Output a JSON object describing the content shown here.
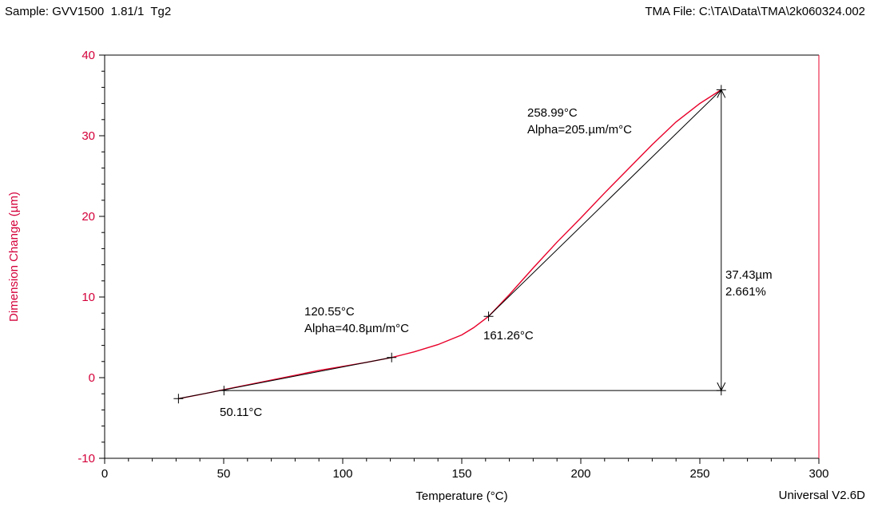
{
  "header": {
    "sample": "Sample: GVV1500  1.81/1  Tg2",
    "file": "TMA File: C:\\TA\\Data\\TMA\\2k060324.002"
  },
  "footer": {
    "version": "Universal V2.6D"
  },
  "colors": {
    "curve": "#e8002a",
    "ylabel": "#d4003a",
    "frame_right": "#e8002a",
    "lines": "#000000"
  },
  "chart_data": {
    "type": "line",
    "xlabel": "Temperature (°C)",
    "ylabel": "Dimension Change (µm)",
    "xlim": [
      0,
      300
    ],
    "ylim": [
      -10,
      40
    ],
    "xticks": [
      0,
      50,
      100,
      150,
      200,
      250,
      300
    ],
    "yticks": [
      -10,
      0,
      10,
      20,
      30,
      40
    ],
    "xtick_labels": [
      "0",
      "50",
      "100",
      "150",
      "200",
      "250",
      "300"
    ],
    "ytick_labels": [
      "-10",
      "0",
      "10",
      "20",
      "30",
      "40"
    ],
    "grid": false,
    "series": [
      {
        "x": [
          31,
          40,
          50,
          60,
          70,
          80,
          90,
          100,
          110,
          120.55,
          130,
          140,
          150,
          155,
          161.26,
          170,
          180,
          190,
          200,
          210,
          220,
          230,
          240,
          250,
          258.99
        ],
        "y": [
          -2.6,
          -2.1,
          -1.5,
          -0.9,
          -0.3,
          0.3,
          0.9,
          1.4,
          1.9,
          2.5,
          3.2,
          4.1,
          5.3,
          6.2,
          7.6,
          10.3,
          13.6,
          16.8,
          19.8,
          22.9,
          25.9,
          28.9,
          31.7,
          34.0,
          35.7
        ]
      }
    ],
    "tangent_lines": [
      {
        "x": [
          31,
          120.55
        ],
        "y": [
          -2.6,
          2.5
        ]
      },
      {
        "x": [
          161.26,
          258.99
        ],
        "y": [
          7.6,
          35.7
        ]
      }
    ],
    "baseline": {
      "x": [
        50.11,
        258.99
      ],
      "y": [
        -1.6,
        -1.6
      ]
    },
    "step_marker": {
      "x": 258.99,
      "y": [
        -1.6,
        35.7
      ]
    },
    "crosshair_points": [
      {
        "x": 31,
        "y": -2.6
      },
      {
        "x": 50.11,
        "y": -1.6
      },
      {
        "x": 120.55,
        "y": 2.5
      },
      {
        "x": 161.26,
        "y": 7.6
      },
      {
        "x": 258.99,
        "y": 35.7
      },
      {
        "x": 258.99,
        "y": -1.6
      }
    ],
    "annotations": {
      "pt1_temp": "50.11°C",
      "pt2_temp": "120.55°C",
      "pt2_alpha": "Alpha=40.8µm/m°C",
      "pt3_temp": "161.26°C",
      "pt4_temp": "258.99°C",
      "pt4_alpha": "Alpha=205.µm/m°C",
      "step_value": "37.43µm",
      "step_percent": "2.661%"
    }
  }
}
